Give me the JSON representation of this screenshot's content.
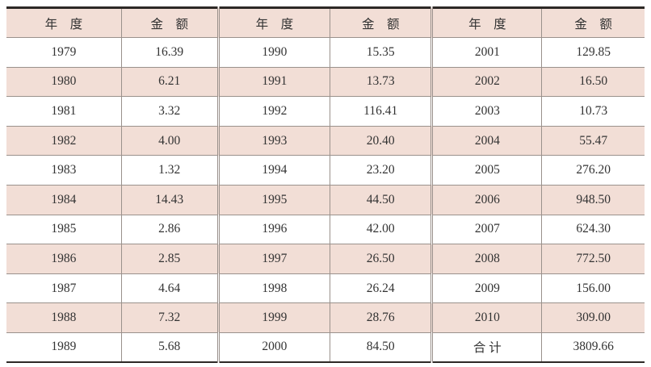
{
  "colors": {
    "stripe": "#f2ded6",
    "thick_border": "#2d2926",
    "thin_border": "#9a918c",
    "text": "#333333",
    "background": "#ffffff"
  },
  "table": {
    "headers": [
      "年　度",
      "金　额",
      "年　度",
      "金　额",
      "年　度",
      "金　额"
    ],
    "rows": [
      {
        "cells": [
          "1979",
          "16.39",
          "1990",
          "15.35",
          "2001",
          "129.85"
        ]
      },
      {
        "cells": [
          "1980",
          "6.21",
          "1991",
          "13.73",
          "2002",
          "16.50"
        ]
      },
      {
        "cells": [
          "1981",
          "3.32",
          "1992",
          "116.41",
          "2003",
          "10.73"
        ]
      },
      {
        "cells": [
          "1982",
          "4.00",
          "1993",
          "20.40",
          "2004",
          "55.47"
        ]
      },
      {
        "cells": [
          "1983",
          "1.32",
          "1994",
          "23.20",
          "2005",
          "276.20"
        ]
      },
      {
        "cells": [
          "1984",
          "14.43",
          "1995",
          "44.50",
          "2006",
          "948.50"
        ]
      },
      {
        "cells": [
          "1985",
          "2.86",
          "1996",
          "42.00",
          "2007",
          "624.30"
        ]
      },
      {
        "cells": [
          "1986",
          "2.85",
          "1997",
          "26.50",
          "2008",
          "772.50"
        ]
      },
      {
        "cells": [
          "1987",
          "4.64",
          "1998",
          "26.24",
          "2009",
          "156.00"
        ]
      },
      {
        "cells": [
          "1988",
          "7.32",
          "1999",
          "28.76",
          "2010",
          "309.00"
        ]
      },
      {
        "cells": [
          "1989",
          "5.68",
          "2000",
          "84.50",
          "合 计",
          "3809.66"
        ]
      }
    ]
  }
}
